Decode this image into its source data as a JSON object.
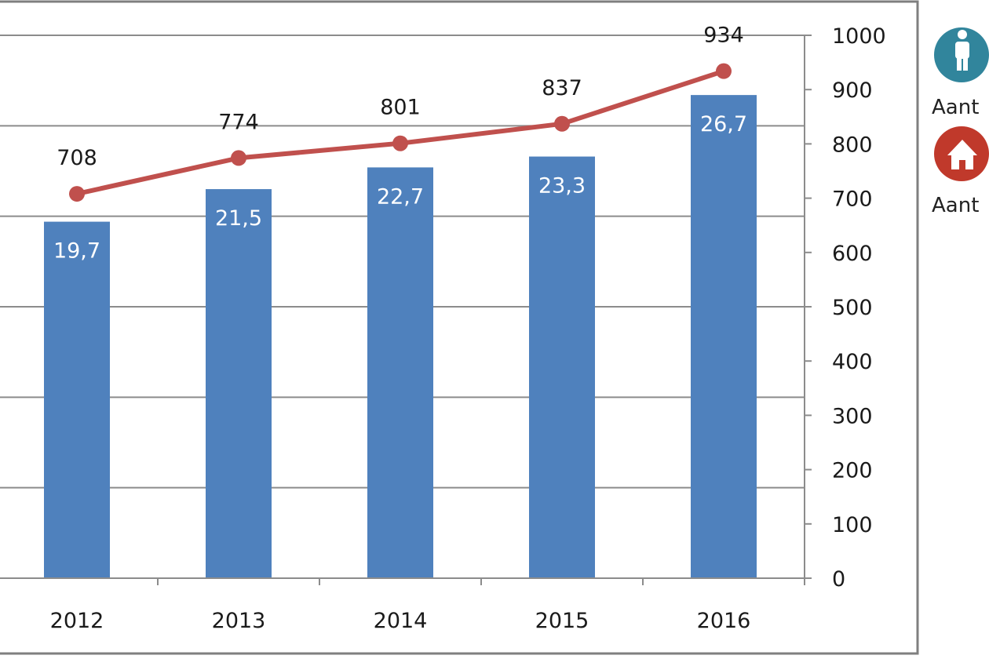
{
  "chart_data": {
    "type": "bar",
    "categories": [
      "2012",
      "2013",
      "2014",
      "2015",
      "2016"
    ],
    "series": [
      {
        "name": "",
        "type": "bar",
        "axis": "left",
        "values": [
          19.7,
          21.5,
          22.7,
          23.3,
          26.7
        ],
        "labels": [
          "19,7",
          "21,5",
          "22,7",
          "23,3",
          "26,7"
        ],
        "color": "#4F81BD"
      },
      {
        "name": "",
        "type": "line",
        "axis": "right",
        "values": [
          708,
          774,
          801,
          837,
          934
        ],
        "labels": [
          "708",
          "774",
          "801",
          "837",
          "934"
        ],
        "color": "#C0504D"
      }
    ],
    "y_left_range": [
      0,
      30
    ],
    "y_right": {
      "range": [
        0,
        1000
      ],
      "ticks": [
        "0",
        "100",
        "200",
        "300",
        "400",
        "500",
        "600",
        "700",
        "800",
        "900",
        "1000"
      ]
    },
    "grid": true,
    "legend": {
      "position": "right",
      "items": [
        {
          "label": "Aant",
          "icon": "person-icon",
          "color": "#31859C"
        },
        {
          "label": "Aant",
          "icon": "house-icon",
          "color": "#C0392B"
        }
      ]
    }
  }
}
